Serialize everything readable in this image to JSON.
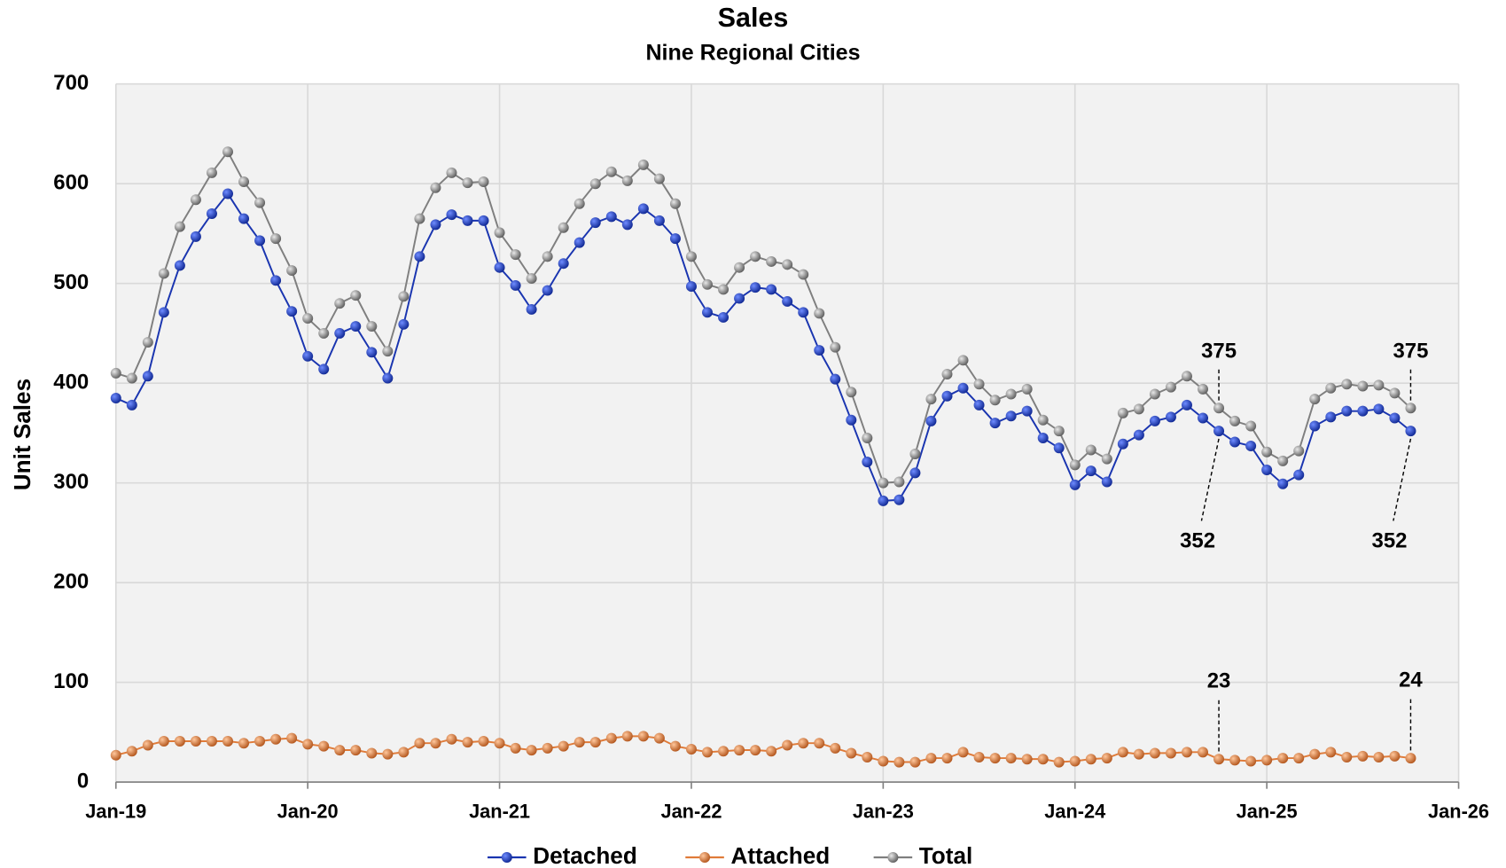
{
  "chart_data": {
    "type": "line",
    "title": "Sales",
    "subtitle": "Nine Regional Cities",
    "y_label": "Unit Sales",
    "x": [
      "2019-01",
      "2019-02",
      "2019-03",
      "2019-04",
      "2019-05",
      "2019-06",
      "2019-07",
      "2019-08",
      "2019-09",
      "2019-10",
      "2019-11",
      "2019-12",
      "2020-01",
      "2020-02",
      "2020-03",
      "2020-04",
      "2020-05",
      "2020-06",
      "2020-07",
      "2020-08",
      "2020-09",
      "2020-10",
      "2020-11",
      "2020-12",
      "2021-01",
      "2021-02",
      "2021-03",
      "2021-04",
      "2021-05",
      "2021-06",
      "2021-07",
      "2021-08",
      "2021-09",
      "2021-10",
      "2021-11",
      "2021-12",
      "2022-01",
      "2022-02",
      "2022-03",
      "2022-04",
      "2022-05",
      "2022-06",
      "2022-07",
      "2022-08",
      "2022-09",
      "2022-10",
      "2022-11",
      "2022-12",
      "2023-01",
      "2023-02",
      "2023-03",
      "2023-04",
      "2023-05",
      "2023-06",
      "2023-07",
      "2023-08",
      "2023-09",
      "2023-10",
      "2023-11",
      "2023-12",
      "2024-01",
      "2024-02",
      "2024-03",
      "2024-04",
      "2024-05",
      "2024-06",
      "2024-07",
      "2024-08",
      "2024-09",
      "2024-10",
      "2024-11",
      "2024-12",
      "2025-01",
      "2025-02",
      "2025-03",
      "2025-04",
      "2025-05",
      "2025-06",
      "2025-07",
      "2025-08",
      "2025-09",
      "2025-10"
    ],
    "series": [
      {
        "name": "Detached",
        "color": "#1a35b0",
        "values": [
          385,
          378,
          407,
          471,
          518,
          547,
          570,
          590,
          565,
          543,
          503,
          472,
          427,
          414,
          450,
          457,
          431,
          405,
          459,
          527,
          559,
          569,
          563,
          563,
          516,
          498,
          474,
          493,
          520,
          541,
          561,
          567,
          559,
          575,
          563,
          545,
          497,
          471,
          466,
          485,
          496,
          494,
          482,
          471,
          433,
          404,
          363,
          321,
          282,
          283,
          310,
          362,
          387,
          395,
          378,
          360,
          367,
          372,
          345,
          335,
          298,
          312,
          301,
          339,
          348,
          362,
          366,
          378,
          365,
          352,
          341,
          337,
          313,
          299,
          308,
          357,
          366,
          372,
          372,
          374,
          365,
          352
        ]
      },
      {
        "name": "Attached",
        "color": "#e07b39",
        "values": [
          27,
          31,
          37,
          41,
          41,
          41,
          41,
          41,
          39,
          41,
          43,
          44,
          38,
          36,
          32,
          32,
          29,
          28,
          30,
          39,
          39,
          43,
          40,
          41,
          39,
          34,
          32,
          34,
          36,
          40,
          40,
          44,
          46,
          46,
          44,
          36,
          33,
          30,
          31,
          32,
          32,
          31,
          37,
          39,
          39,
          34,
          29,
          25,
          21,
          20,
          20,
          24,
          24,
          30,
          25,
          24,
          24,
          23,
          23,
          20,
          21,
          23,
          24,
          30,
          28,
          29,
          29,
          30,
          30,
          23,
          22,
          21,
          22,
          24,
          24,
          28,
          30,
          25,
          26,
          25,
          26,
          24
        ]
      },
      {
        "name": "Total",
        "color": "#7f7f7f",
        "values": [
          410,
          405,
          441,
          510,
          557,
          584,
          611,
          632,
          602,
          581,
          545,
          513,
          465,
          450,
          480,
          488,
          457,
          432,
          487,
          565,
          596,
          611,
          601,
          602,
          551,
          529,
          505,
          527,
          556,
          580,
          600,
          612,
          603,
          619,
          605,
          580,
          527,
          499,
          494,
          516,
          527,
          522,
          519,
          509,
          470,
          436,
          391,
          345,
          300,
          301,
          329,
          384,
          409,
          423,
          399,
          383,
          389,
          394,
          363,
          352,
          318,
          333,
          324,
          370,
          374,
          389,
          396,
          407,
          394,
          375,
          362,
          357,
          331,
          322,
          332,
          384,
          395,
          399,
          397,
          398,
          390,
          375
        ]
      }
    ],
    "xlim": [
      "2019-01",
      "2026-01"
    ],
    "xticks": [
      {
        "value": "2019-01",
        "label": "Jan-19"
      },
      {
        "value": "2020-01",
        "label": "Jan-20"
      },
      {
        "value": "2021-01",
        "label": "Jan-21"
      },
      {
        "value": "2022-01",
        "label": "Jan-22"
      },
      {
        "value": "2023-01",
        "label": "Jan-23"
      },
      {
        "value": "2024-01",
        "label": "Jan-24"
      },
      {
        "value": "2025-01",
        "label": "Jan-25"
      },
      {
        "value": "2026-01",
        "label": "Jan-26"
      }
    ],
    "ylim": [
      0,
      700
    ],
    "yticks": [
      0,
      100,
      200,
      300,
      400,
      500,
      600,
      700
    ],
    "grid": true,
    "legend": "bottom"
  }
}
